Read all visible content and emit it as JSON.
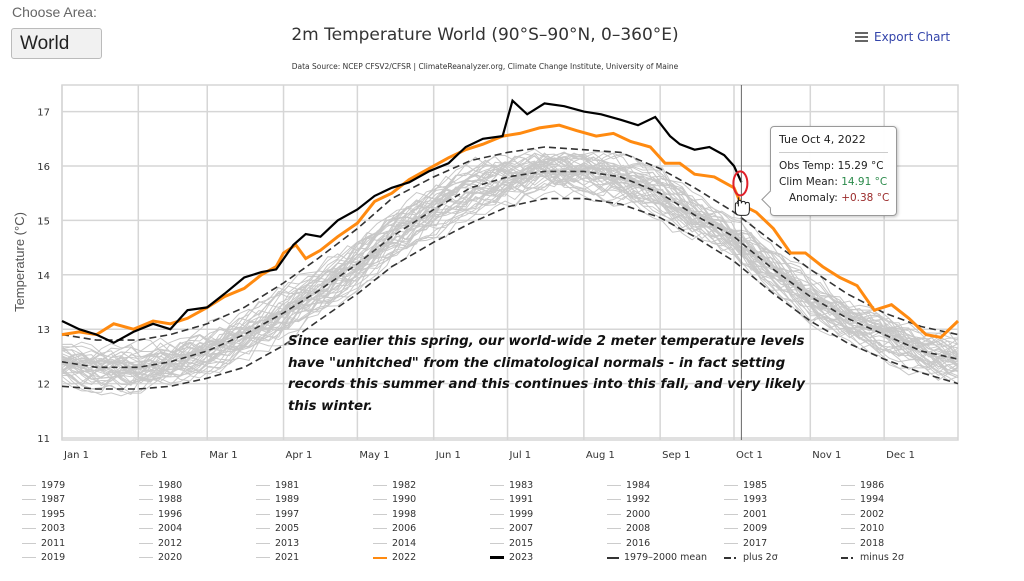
{
  "controls": {
    "area_label": "Choose Area:",
    "area_value": "World",
    "export_label": "Export Chart",
    "export_icon": "hamburger-menu-icon"
  },
  "tooltip": {
    "date": "Tue Oct 4, 2022",
    "obs_label": "Obs Temp:",
    "obs_value": "15.29 °C",
    "clim_label": "Clim Mean:",
    "clim_value": "14.91 °C",
    "anom_label": "Anomaly:",
    "anom_value": "+0.38 °C"
  },
  "annotation": "Since earlier this spring, our world-wide 2 meter temperature levels have \"unhitched\" from the climatological normals - in fact setting records this summer and this continues into this fall, and very likely this winter.",
  "colors": {
    "year_2022": "#ff8a10",
    "year_2023": "#000000",
    "other_years": "#c8c8c8",
    "mean_dashed": "#333333",
    "highlight_circle": "#e0202a"
  },
  "chart_data": {
    "type": "line",
    "title": "2m Temperature World (90°S–90°N, 0–360°E)",
    "subtitle": "Data Source: NCEP CFSV2/CFSR | ClimateReanalyzer.org, Climate Change Institute, University of Maine",
    "xlabel": "",
    "ylabel": "Temperature (°C)",
    "ylim": [
      11,
      17.5
    ],
    "yticks": [
      11,
      12,
      13,
      14,
      15,
      16,
      17
    ],
    "xlim": [
      1,
      365
    ],
    "xticks": [
      {
        "label": "Jan 1",
        "day": 1
      },
      {
        "label": "Feb 1",
        "day": 32
      },
      {
        "label": "Mar 1",
        "day": 60
      },
      {
        "label": "Apr 1",
        "day": 91
      },
      {
        "label": "May 1",
        "day": 121
      },
      {
        "label": "Jun 1",
        "day": 152
      },
      {
        "label": "Jul 1",
        "day": 182
      },
      {
        "label": "Aug 1",
        "day": 213
      },
      {
        "label": "Sep 1",
        "day": 244
      },
      {
        "label": "Oct 1",
        "day": 274
      },
      {
        "label": "Nov 1",
        "day": 305
      },
      {
        "label": "Dec 1",
        "day": 335
      }
    ],
    "grid": true,
    "legend_position": "bottom",
    "crosshair_day": 277,
    "highlight_point": {
      "day": 277,
      "value": 15.29
    },
    "series": [
      {
        "name": "1979-2000 mean",
        "style": "dashed",
        "x": [
          1,
          15,
          32,
          45,
          60,
          75,
          91,
          105,
          121,
          135,
          152,
          167,
          182,
          197,
          213,
          228,
          244,
          258,
          274,
          290,
          305,
          320,
          335,
          350,
          365
        ],
        "y": [
          12.4,
          12.3,
          12.3,
          12.4,
          12.6,
          12.9,
          13.3,
          13.7,
          14.2,
          14.7,
          15.2,
          15.6,
          15.8,
          15.9,
          15.9,
          15.8,
          15.5,
          15.1,
          14.7,
          14.1,
          13.6,
          13.2,
          12.9,
          12.6,
          12.45
        ]
      },
      {
        "name": "plus 2σ",
        "style": "dashdot",
        "x": [
          1,
          15,
          32,
          45,
          60,
          75,
          91,
          105,
          121,
          135,
          152,
          167,
          182,
          197,
          213,
          228,
          244,
          258,
          274,
          290,
          305,
          320,
          335,
          350,
          365
        ],
        "y": [
          12.9,
          12.8,
          12.8,
          12.9,
          13.1,
          13.4,
          13.85,
          14.3,
          14.85,
          15.4,
          15.8,
          16.1,
          16.25,
          16.35,
          16.3,
          16.25,
          15.95,
          15.6,
          15.15,
          14.6,
          14.1,
          13.65,
          13.3,
          13.05,
          12.9
        ]
      },
      {
        "name": "minus 2σ",
        "style": "dashdot",
        "x": [
          1,
          15,
          32,
          45,
          60,
          75,
          91,
          105,
          121,
          135,
          152,
          167,
          182,
          197,
          213,
          228,
          244,
          258,
          274,
          290,
          305,
          320,
          335,
          350,
          365
        ],
        "y": [
          11.95,
          11.9,
          11.9,
          11.95,
          12.1,
          12.3,
          12.7,
          13.15,
          13.65,
          14.15,
          14.6,
          14.95,
          15.25,
          15.4,
          15.4,
          15.3,
          15.05,
          14.7,
          14.25,
          13.65,
          13.15,
          12.75,
          12.45,
          12.2,
          12.0
        ]
      },
      {
        "name": "2022",
        "style": "orange",
        "x": [
          1,
          8,
          15,
          22,
          30,
          38,
          45,
          52,
          60,
          67,
          75,
          82,
          88,
          91,
          96,
          100,
          106,
          113,
          121,
          128,
          135,
          142,
          150,
          158,
          165,
          172,
          180,
          187,
          195,
          203,
          210,
          218,
          225,
          232,
          240,
          246,
          252,
          258,
          266,
          274,
          277,
          283,
          290,
          297,
          303,
          310,
          317,
          324,
          331,
          338,
          345,
          352,
          358,
          365
        ],
        "y": [
          12.9,
          12.95,
          12.9,
          13.1,
          13.0,
          13.15,
          13.1,
          13.2,
          13.4,
          13.6,
          13.75,
          14.0,
          14.15,
          14.4,
          14.55,
          14.3,
          14.45,
          14.7,
          14.95,
          15.35,
          15.5,
          15.75,
          15.95,
          16.15,
          16.3,
          16.4,
          16.55,
          16.6,
          16.7,
          16.75,
          16.65,
          16.55,
          16.6,
          16.45,
          16.35,
          16.05,
          16.05,
          15.85,
          15.8,
          15.6,
          15.29,
          15.15,
          14.85,
          14.4,
          14.4,
          14.15,
          13.95,
          13.8,
          13.35,
          13.45,
          13.2,
          12.9,
          12.85,
          13.15
        ]
      },
      {
        "name": "2023",
        "style": "black",
        "x": [
          1,
          8,
          15,
          22,
          30,
          38,
          45,
          52,
          60,
          67,
          75,
          82,
          88,
          95,
          100,
          106,
          113,
          121,
          128,
          135,
          142,
          150,
          158,
          165,
          172,
          180,
          184,
          190,
          197,
          205,
          213,
          220,
          228,
          235,
          242,
          248,
          252,
          258,
          264,
          270,
          274,
          277
        ],
        "y": [
          13.15,
          13.0,
          12.9,
          12.75,
          12.95,
          13.1,
          13.0,
          13.35,
          13.4,
          13.65,
          13.95,
          14.05,
          14.1,
          14.55,
          14.75,
          14.7,
          15.0,
          15.2,
          15.45,
          15.6,
          15.7,
          15.9,
          16.05,
          16.35,
          16.5,
          16.55,
          17.2,
          16.95,
          17.15,
          17.1,
          17.0,
          16.95,
          16.85,
          16.75,
          16.9,
          16.55,
          16.4,
          16.3,
          16.35,
          16.2,
          16.0,
          15.7
        ]
      }
    ],
    "other_years": [
      "1979",
      "1980",
      "1981",
      "1982",
      "1983",
      "1984",
      "1985",
      "1986",
      "1987",
      "1988",
      "1989",
      "1990",
      "1991",
      "1992",
      "1993",
      "1994",
      "1995",
      "1996",
      "1997",
      "1998",
      "1999",
      "2000",
      "2001",
      "2002",
      "2003",
      "2004",
      "2005",
      "2006",
      "2007",
      "2008",
      "2009",
      "2010",
      "2011",
      "2012",
      "2013",
      "2014",
      "2015",
      "2016",
      "2017",
      "2018",
      "2019",
      "2020",
      "2021"
    ],
    "legend": [
      {
        "label": "1979",
        "style": "grey"
      },
      {
        "label": "1980",
        "style": "grey"
      },
      {
        "label": "1981",
        "style": "grey"
      },
      {
        "label": "1982",
        "style": "grey"
      },
      {
        "label": "1983",
        "style": "grey"
      },
      {
        "label": "1984",
        "style": "grey"
      },
      {
        "label": "1985",
        "style": "grey"
      },
      {
        "label": "1986",
        "style": "grey"
      },
      {
        "label": "1987",
        "style": "grey"
      },
      {
        "label": "1988",
        "style": "grey"
      },
      {
        "label": "1989",
        "style": "grey"
      },
      {
        "label": "1990",
        "style": "grey"
      },
      {
        "label": "1991",
        "style": "grey"
      },
      {
        "label": "1992",
        "style": "grey"
      },
      {
        "label": "1993",
        "style": "grey"
      },
      {
        "label": "1994",
        "style": "grey"
      },
      {
        "label": "1995",
        "style": "grey"
      },
      {
        "label": "1996",
        "style": "grey"
      },
      {
        "label": "1997",
        "style": "grey"
      },
      {
        "label": "1998",
        "style": "grey"
      },
      {
        "label": "1999",
        "style": "grey"
      },
      {
        "label": "2000",
        "style": "grey"
      },
      {
        "label": "2001",
        "style": "grey"
      },
      {
        "label": "2002",
        "style": "grey"
      },
      {
        "label": "2003",
        "style": "grey"
      },
      {
        "label": "2004",
        "style": "grey"
      },
      {
        "label": "2005",
        "style": "grey"
      },
      {
        "label": "2006",
        "style": "grey"
      },
      {
        "label": "2007",
        "style": "grey"
      },
      {
        "label": "2008",
        "style": "grey"
      },
      {
        "label": "2009",
        "style": "grey"
      },
      {
        "label": "2010",
        "style": "grey"
      },
      {
        "label": "2011",
        "style": "grey"
      },
      {
        "label": "2012",
        "style": "grey"
      },
      {
        "label": "2013",
        "style": "grey"
      },
      {
        "label": "2014",
        "style": "grey"
      },
      {
        "label": "2015",
        "style": "grey"
      },
      {
        "label": "2016",
        "style": "grey"
      },
      {
        "label": "2017",
        "style": "grey"
      },
      {
        "label": "2018",
        "style": "grey"
      },
      {
        "label": "2019",
        "style": "grey"
      },
      {
        "label": "2020",
        "style": "grey"
      },
      {
        "label": "2021",
        "style": "grey"
      },
      {
        "label": "2022",
        "style": "orange"
      },
      {
        "label": "2023",
        "style": "black"
      },
      {
        "label": "1979–2000 mean",
        "style": "dash"
      },
      {
        "label": "plus 2σ",
        "style": "dashdot"
      },
      {
        "label": "minus 2σ",
        "style": "dashdot"
      }
    ]
  }
}
